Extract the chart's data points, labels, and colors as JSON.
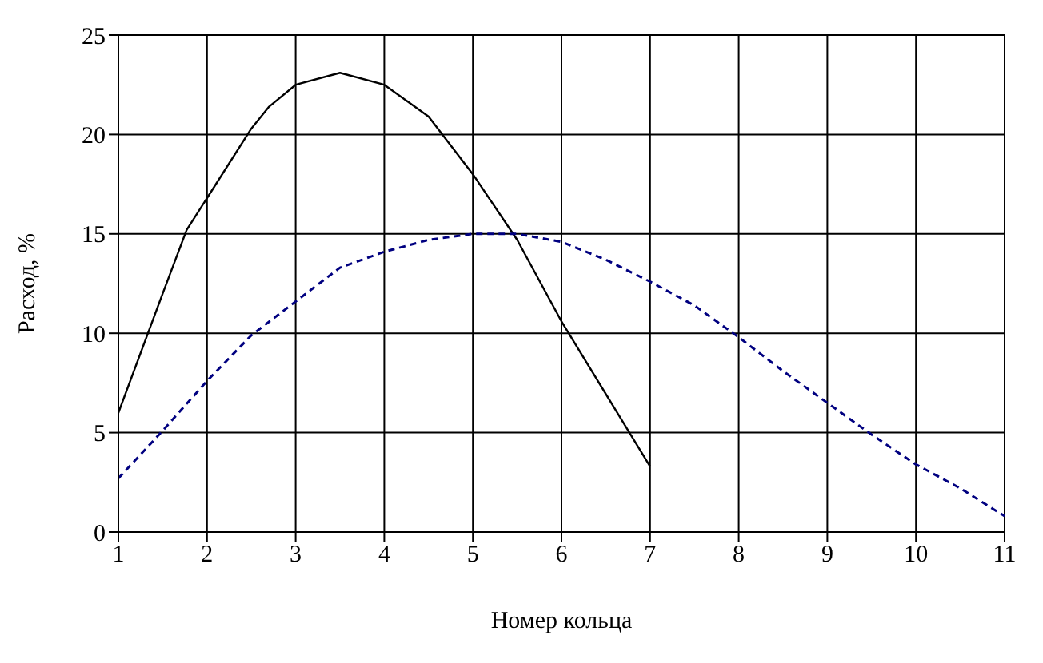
{
  "chart_data": {
    "type": "line",
    "xlabel": "Номер кольца",
    "ylabel": "Расход, %",
    "xlim": [
      1,
      11
    ],
    "xticks": [
      1,
      2,
      3,
      4,
      5,
      6,
      7,
      8,
      9,
      10,
      11
    ],
    "ylim": [
      0,
      25
    ],
    "yticks": [
      0,
      5,
      10,
      15,
      20,
      25
    ],
    "grid": true,
    "legend": false,
    "marker": "none",
    "series": [
      {
        "color": "#000000",
        "line_style": "solid",
        "x": [
          1,
          1.5,
          1.77,
          2,
          2.5,
          2.7,
          3,
          3.5,
          4,
          4.5,
          5,
          5.5,
          6,
          7
        ],
        "values": [
          6.0,
          12.0,
          15.2,
          16.8,
          20.3,
          21.4,
          22.5,
          23.1,
          22.5,
          20.9,
          18.0,
          14.7,
          10.6,
          3.3
        ]
      },
      {
        "color": "#000080",
        "line_style": "dashed",
        "x": [
          1,
          1.5,
          2,
          2.5,
          3,
          3.5,
          4,
          4.5,
          5,
          5.5,
          6,
          6.5,
          7,
          7.5,
          8,
          8.5,
          9,
          9.5,
          10,
          10.5,
          11
        ],
        "values": [
          2.7,
          5.1,
          7.6,
          9.9,
          11.6,
          13.3,
          14.1,
          14.7,
          15.0,
          15.0,
          14.6,
          13.7,
          12.6,
          11.4,
          9.8,
          8.1,
          6.5,
          4.9,
          3.4,
          2.2,
          0.8
        ]
      }
    ]
  }
}
